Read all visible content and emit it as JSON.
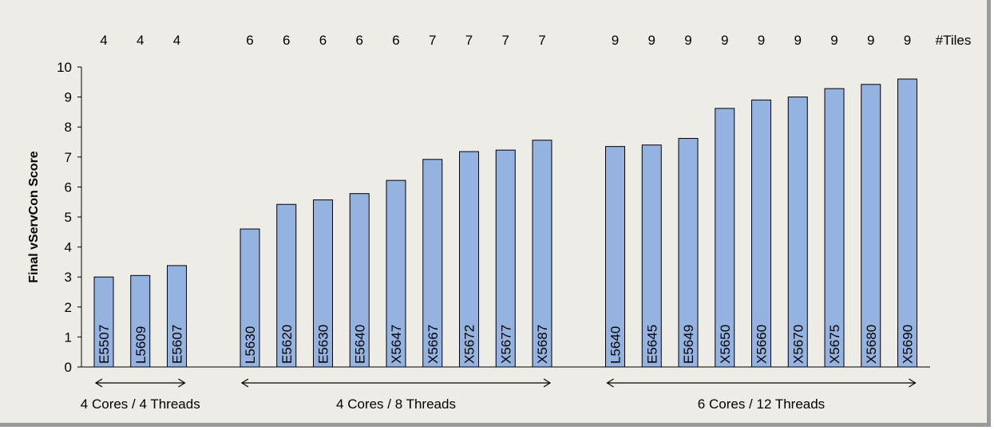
{
  "chart_data": {
    "type": "bar",
    "ylabel": "Final vServCon Score",
    "ylim": [
      0,
      10
    ],
    "yticks": [
      0,
      1,
      2,
      3,
      4,
      5,
      6,
      7,
      8,
      9,
      10
    ],
    "grid": false,
    "tiles_header": "#Tiles",
    "bar_color": "#95b3e0",
    "groups": [
      {
        "label": "4 Cores / 4 Threads",
        "categories": [
          "E5507",
          "L5609",
          "E5607"
        ],
        "values": [
          3.0,
          3.05,
          3.38
        ],
        "tiles": [
          "4",
          "4",
          "4"
        ]
      },
      {
        "label": "4 Cores / 8 Threads",
        "categories": [
          "L5630",
          "E5620",
          "E5630",
          "E5640",
          "X5647",
          "X5667",
          "X5672",
          "X5677",
          "X5687"
        ],
        "values": [
          4.6,
          5.42,
          5.57,
          5.78,
          6.22,
          6.92,
          7.18,
          7.23,
          7.56
        ],
        "tiles": [
          "6",
          "6",
          "6",
          "6",
          "6",
          "7",
          "7",
          "7",
          "7"
        ]
      },
      {
        "label": "6 Cores / 12 Threads",
        "categories": [
          "L5640",
          "E5645",
          "E5649",
          "X5650",
          "X5660",
          "X5670",
          "X5675",
          "X5680",
          "X5690"
        ],
        "values": [
          7.35,
          7.4,
          7.62,
          8.62,
          8.9,
          9.0,
          9.28,
          9.42,
          9.6
        ],
        "tiles": [
          "9",
          "9",
          "9",
          "9",
          "9",
          "9",
          "9",
          "9",
          "9"
        ]
      }
    ]
  }
}
